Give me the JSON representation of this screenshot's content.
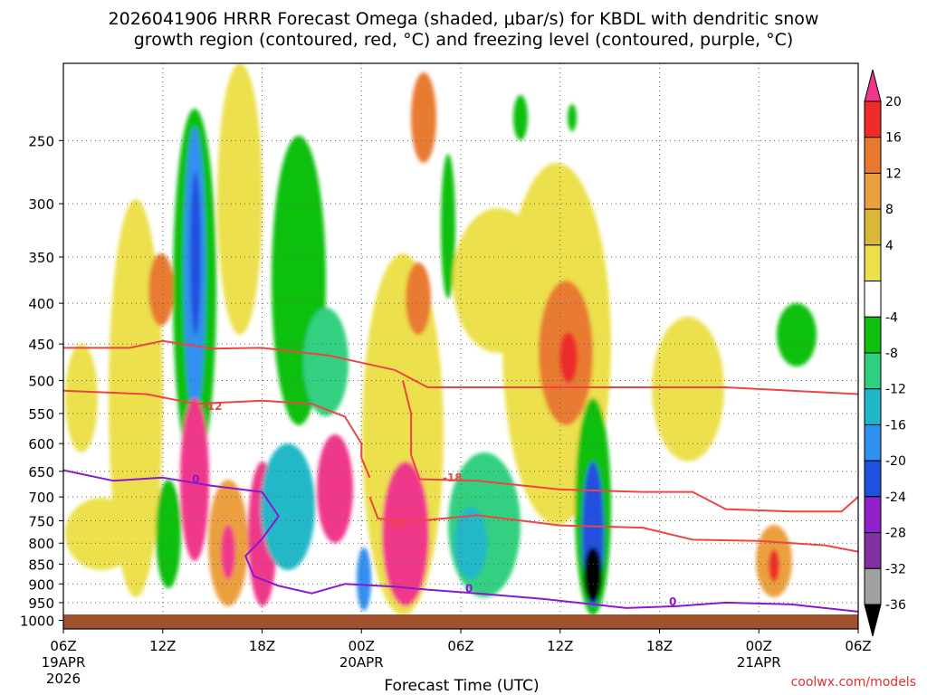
{
  "chart_data": {
    "type": "heatmap",
    "title": "2026041906 HRRR Forecast Omega (shaded, μbar/s) for KBDL with dendritic snow growth region (contoured, red, °C) and freezing level (contoured, purple, °C)",
    "title_lines": [
      "2026041906 HRRR Forecast Omega (shaded, μbar/s) for KBDL with dendritic snow",
      "growth region (contoured, red, °C) and freezing level (contoured, purple, °C)"
    ],
    "xlabel": "Forecast Time (UTC)",
    "ylabel": "",
    "credit": "coolwx.com/models",
    "x_range_hours": [
      0,
      48
    ],
    "x_ticks": [
      {
        "hour": 0,
        "label": "06Z",
        "date": "19APR",
        "year": "2026"
      },
      {
        "hour": 6,
        "label": "12Z"
      },
      {
        "hour": 12,
        "label": "18Z"
      },
      {
        "hour": 18,
        "label": "00Z",
        "date": "20APR"
      },
      {
        "hour": 24,
        "label": "06Z"
      },
      {
        "hour": 30,
        "label": "12Z"
      },
      {
        "hour": 36,
        "label": "18Z"
      },
      {
        "hour": 42,
        "label": "00Z",
        "date": "21APR"
      },
      {
        "hour": 48,
        "label": "06Z"
      }
    ],
    "y_range_hpa": [
      1025,
      200
    ],
    "y_ticks": [
      250,
      300,
      350,
      400,
      450,
      500,
      550,
      600,
      650,
      700,
      750,
      800,
      850,
      900,
      950,
      1000
    ],
    "colorbar": {
      "labels": [
        "20",
        "16",
        "12",
        "8",
        "4",
        "-4",
        "-8",
        "-12",
        "-16",
        "-20",
        "-24",
        "-28",
        "-32",
        "-36"
      ],
      "colors": [
        "#f0388a",
        "#ee2a2a",
        "#e87a30",
        "#eba040",
        "#d8b838",
        "#ece04e",
        "#ffffff",
        "#10c010",
        "#30d080",
        "#20b8c8",
        "#3090f0",
        "#2050e0",
        "#9020c8",
        "#8030a0",
        "#a0a0a0",
        "#000000"
      ]
    },
    "contours": [
      {
        "name": "dendritic-upper-500",
        "color": "#ee4444",
        "label": "",
        "points": [
          [
            0,
            455
          ],
          [
            4,
            455
          ],
          [
            6,
            446
          ],
          [
            9,
            456
          ],
          [
            12,
            455
          ],
          [
            16,
            465
          ],
          [
            20,
            485
          ],
          [
            22,
            510
          ],
          [
            24,
            510
          ],
          [
            30,
            510
          ],
          [
            36,
            510
          ],
          [
            40,
            510
          ],
          [
            44,
            515
          ],
          [
            48,
            520
          ]
        ]
      },
      {
        "name": "dendritic-minus12-upper",
        "color": "#ee4444",
        "label": "-12",
        "label_at": [
          9,
          539
        ],
        "points": [
          [
            0,
            515
          ],
          [
            5,
            520
          ],
          [
            8,
            535
          ],
          [
            12,
            530
          ],
          [
            15,
            535
          ],
          [
            17,
            555
          ],
          [
            18,
            600
          ],
          [
            18,
            625
          ],
          [
            18.5,
            662
          ]
        ]
      },
      {
        "name": "dendritic-minus18",
        "color": "#ee4444",
        "label": "-18",
        "label_at": [
          23.5,
          662
        ],
        "points": [
          [
            20.5,
            500
          ],
          [
            21,
            550
          ],
          [
            21,
            620
          ],
          [
            21.5,
            665
          ],
          [
            25,
            668
          ],
          [
            30,
            685
          ],
          [
            35,
            690
          ],
          [
            38,
            690
          ],
          [
            40,
            725
          ],
          [
            44,
            730
          ],
          [
            47,
            730
          ],
          [
            48,
            700
          ]
        ]
      },
      {
        "name": "dendritic-minus12-lower",
        "color": "#ee4444",
        "label": "-12",
        "label_at": [
          20,
          758
        ],
        "points": [
          [
            18.5,
            700
          ],
          [
            19,
            745
          ],
          [
            21,
            752
          ],
          [
            25,
            738
          ],
          [
            30,
            760
          ],
          [
            35,
            765
          ],
          [
            38,
            792
          ],
          [
            42,
            795
          ],
          [
            46,
            805
          ],
          [
            48,
            820
          ]
        ]
      },
      {
        "name": "freezing-level-0",
        "color": "#8b18d0",
        "label": "0",
        "label_at": [
          8,
          665
        ],
        "points": [
          [
            0,
            648
          ],
          [
            3,
            668
          ],
          [
            6,
            662
          ],
          [
            9,
            678
          ],
          [
            12,
            690
          ],
          [
            13,
            740
          ],
          [
            12,
            790
          ],
          [
            11,
            830
          ],
          [
            11.5,
            880
          ],
          [
            13,
            905
          ],
          [
            15,
            925
          ],
          [
            17,
            900
          ],
          [
            20,
            907
          ],
          [
            22,
            915
          ],
          [
            25,
            925
          ],
          [
            29,
            940
          ],
          [
            34,
            965
          ],
          [
            37,
            960
          ],
          [
            40,
            950
          ],
          [
            44,
            955
          ],
          [
            48,
            975
          ]
        ]
      },
      {
        "name": "freezing-level-0-b",
        "color": "#8b18d0",
        "label": "0",
        "label_at": [
          24.5,
          912
        ],
        "points": []
      },
      {
        "name": "freezing-level-0-c",
        "color": "#8b18d0",
        "label": "0",
        "label_at": [
          36.8,
          948
        ],
        "points": []
      }
    ]
  }
}
